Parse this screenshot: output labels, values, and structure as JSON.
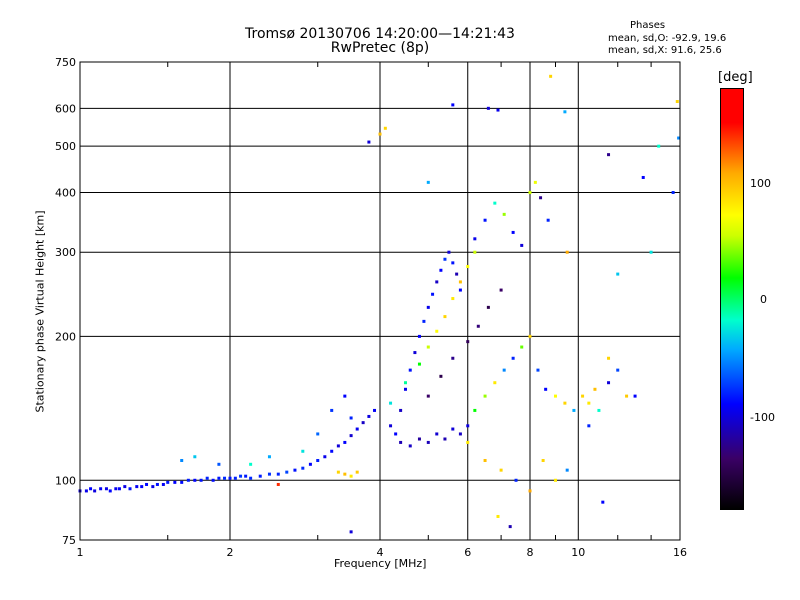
{
  "header": {
    "title_line1": "Tromsø 20130706 14:20:00—14:21:43",
    "title_line2": "RwPretec (8p)",
    "phases_title": "Phases",
    "phases_o": "mean, sd,O:  -92.9, 19.6",
    "phases_x": "mean, sd,X:   91.6, 25.6"
  },
  "colorbar": {
    "unit_label": "[deg]",
    "ticks": [
      "100",
      "0",
      "-100"
    ],
    "colors": [
      "#000000",
      "#3a0066",
      "#0000ff",
      "#00aaff",
      "#00ff00",
      "#ffff00",
      "#ff0000"
    ]
  },
  "chart_data": {
    "type": "scatter",
    "xlabel": "Frequency [MHz]",
    "ylabel": "Stationary phase Virtual Height [km]",
    "x_scale": "log",
    "y_scale": "log",
    "xlim": [
      1,
      16
    ],
    "ylim": [
      75,
      750
    ],
    "x_ticks": [
      1,
      2,
      4,
      6,
      8,
      10,
      16
    ],
    "x_ticklabels": [
      "1",
      "2",
      "4",
      "6",
      "8",
      "10",
      "16"
    ],
    "y_ticks": [
      75,
      100,
      200,
      300,
      400,
      500,
      600,
      750
    ],
    "y_ticklabels": [
      "75",
      "100",
      "200",
      "300",
      "400",
      "500",
      "600",
      "750"
    ],
    "grid": true,
    "color_scale": "phase [deg], -180 to 180",
    "series": [
      {
        "values": [
          [
            1.0,
            95,
            -110
          ],
          [
            1.03,
            95,
            -105
          ],
          [
            1.05,
            96,
            -100
          ],
          [
            1.07,
            95,
            -108
          ],
          [
            1.1,
            96,
            -102
          ],
          [
            1.13,
            96,
            -106
          ],
          [
            1.15,
            95,
            -99
          ],
          [
            1.18,
            96,
            -104
          ],
          [
            1.2,
            96,
            -101
          ],
          [
            1.23,
            97,
            -107
          ],
          [
            1.26,
            96,
            -95
          ],
          [
            1.3,
            97,
            -103
          ],
          [
            1.33,
            97,
            -100
          ],
          [
            1.36,
            98,
            -98
          ],
          [
            1.4,
            97,
            -105
          ],
          [
            1.43,
            98,
            -96
          ],
          [
            1.47,
            98,
            -102
          ],
          [
            1.5,
            99,
            -94
          ],
          [
            1.55,
            99,
            -100
          ],
          [
            1.6,
            99,
            -97
          ],
          [
            1.65,
            100,
            -92
          ],
          [
            1.7,
            100,
            -99
          ],
          [
            1.75,
            100,
            -95
          ],
          [
            1.8,
            101,
            -90
          ],
          [
            1.85,
            100,
            -97
          ],
          [
            1.9,
            101,
            -93
          ],
          [
            1.95,
            101,
            -88
          ],
          [
            2.0,
            101,
            -95
          ],
          [
            2.05,
            101,
            -90
          ],
          [
            2.1,
            102,
            -85
          ],
          [
            2.15,
            102,
            -93
          ],
          [
            2.2,
            101,
            -88
          ],
          [
            2.3,
            102,
            -92
          ],
          [
            2.4,
            103,
            -86
          ],
          [
            2.5,
            103,
            -90
          ],
          [
            2.6,
            104,
            -80
          ],
          [
            2.7,
            105,
            -95
          ],
          [
            2.8,
            106,
            -88
          ],
          [
            2.9,
            108,
            -100
          ],
          [
            3.0,
            110,
            -92
          ],
          [
            3.1,
            112,
            -105
          ],
          [
            3.2,
            115,
            -98
          ],
          [
            3.3,
            118,
            -110
          ],
          [
            3.4,
            120,
            -100
          ],
          [
            3.5,
            124,
            -112
          ],
          [
            3.6,
            128,
            -104
          ],
          [
            3.7,
            132,
            -115
          ],
          [
            3.8,
            136,
            -108
          ],
          [
            3.9,
            140,
            -102
          ],
          [
            1.6,
            110,
            -60
          ],
          [
            1.7,
            112,
            -40
          ],
          [
            1.9,
            108,
            -75
          ],
          [
            2.2,
            108,
            -20
          ],
          [
            2.4,
            112,
            -50
          ],
          [
            2.8,
            115,
            -30
          ],
          [
            3.0,
            125,
            -70
          ],
          [
            3.2,
            140,
            -85
          ],
          [
            3.4,
            150,
            -100
          ],
          [
            3.5,
            135,
            -90
          ],
          [
            3.3,
            104,
            110
          ],
          [
            3.4,
            103,
            120
          ],
          [
            3.5,
            102,
            100
          ],
          [
            3.6,
            104,
            115
          ],
          [
            2.5,
            98,
            160
          ],
          [
            3.5,
            78,
            -110
          ],
          [
            4.2,
            130,
            -110
          ],
          [
            4.3,
            125,
            -100
          ],
          [
            4.4,
            140,
            -115
          ],
          [
            4.5,
            155,
            -105
          ],
          [
            4.6,
            170,
            -95
          ],
          [
            4.7,
            185,
            -110
          ],
          [
            4.8,
            200,
            -100
          ],
          [
            4.9,
            215,
            -90
          ],
          [
            5.0,
            230,
            -105
          ],
          [
            5.1,
            245,
            -95
          ],
          [
            5.2,
            260,
            -115
          ],
          [
            5.3,
            275,
            -100
          ],
          [
            5.4,
            290,
            -85
          ],
          [
            5.5,
            300,
            -110
          ],
          [
            5.6,
            285,
            -95
          ],
          [
            5.7,
            270,
            -120
          ],
          [
            5.8,
            250,
            -100
          ],
          [
            4.4,
            120,
            -120
          ],
          [
            4.6,
            118,
            -115
          ],
          [
            4.8,
            122,
            -125
          ],
          [
            5.0,
            120,
            -118
          ],
          [
            5.2,
            125,
            -112
          ],
          [
            5.4,
            122,
            -120
          ],
          [
            5.6,
            128,
            -110
          ],
          [
            5.8,
            125,
            -115
          ],
          [
            6.0,
            130,
            -108
          ],
          [
            4.2,
            145,
            -30
          ],
          [
            4.5,
            160,
            -10
          ],
          [
            4.8,
            175,
            20
          ],
          [
            5.0,
            190,
            60
          ],
          [
            5.2,
            205,
            90
          ],
          [
            5.4,
            220,
            110
          ],
          [
            5.6,
            240,
            100
          ],
          [
            5.8,
            260,
            120
          ],
          [
            6.0,
            280,
            90
          ],
          [
            6.2,
            300,
            60
          ],
          [
            5.0,
            150,
            -140
          ],
          [
            5.3,
            165,
            -150
          ],
          [
            5.6,
            180,
            -130
          ],
          [
            6.0,
            195,
            -145
          ],
          [
            6.3,
            210,
            -135
          ],
          [
            6.6,
            230,
            -150
          ],
          [
            7.0,
            250,
            -140
          ],
          [
            6.2,
            140,
            20
          ],
          [
            6.5,
            150,
            50
          ],
          [
            6.8,
            160,
            100
          ],
          [
            7.1,
            170,
            -60
          ],
          [
            7.4,
            180,
            -90
          ],
          [
            7.7,
            190,
            40
          ],
          [
            8.0,
            200,
            110
          ],
          [
            8.3,
            170,
            -80
          ],
          [
            8.6,
            155,
            -100
          ],
          [
            9.0,
            150,
            90
          ],
          [
            9.4,
            145,
            110
          ],
          [
            9.8,
            140,
            -50
          ],
          [
            6.2,
            320,
            -105
          ],
          [
            6.5,
            350,
            -95
          ],
          [
            6.8,
            380,
            -20
          ],
          [
            7.1,
            360,
            50
          ],
          [
            7.4,
            330,
            -100
          ],
          [
            7.7,
            310,
            -110
          ],
          [
            8.0,
            400,
            60
          ],
          [
            8.2,
            420,
            80
          ],
          [
            8.4,
            390,
            -130
          ],
          [
            8.7,
            350,
            -90
          ],
          [
            6.0,
            120,
            100
          ],
          [
            6.5,
            110,
            120
          ],
          [
            7.0,
            105,
            110
          ],
          [
            7.5,
            100,
            -90
          ],
          [
            8.0,
            95,
            130
          ],
          [
            8.5,
            110,
            110
          ],
          [
            9.0,
            100,
            100
          ],
          [
            9.5,
            105,
            -60
          ],
          [
            10.2,
            150,
            110
          ],
          [
            10.5,
            145,
            100
          ],
          [
            10.8,
            155,
            120
          ],
          [
            11.0,
            140,
            -20
          ],
          [
            11.5,
            180,
            110
          ],
          [
            12.0,
            170,
            -80
          ],
          [
            12.5,
            150,
            115
          ],
          [
            3.8,
            510,
            -110
          ],
          [
            4.0,
            530,
            120
          ],
          [
            4.1,
            545,
            110
          ],
          [
            5.6,
            610,
            -100
          ],
          [
            6.6,
            600,
            -110
          ],
          [
            6.9,
            595,
            -105
          ],
          [
            8.8,
            700,
            110
          ],
          [
            9.4,
            590,
            -50
          ],
          [
            11.5,
            480,
            -130
          ],
          [
            13.5,
            430,
            -100
          ],
          [
            14.5,
            500,
            -20
          ],
          [
            15.5,
            400,
            -90
          ],
          [
            15.8,
            620,
            110
          ],
          [
            15.9,
            520,
            -60
          ],
          [
            14.0,
            300,
            -30
          ],
          [
            12.0,
            270,
            -40
          ],
          [
            13.0,
            150,
            -100
          ],
          [
            11.5,
            160,
            -110
          ],
          [
            11.2,
            90,
            -100
          ],
          [
            10.5,
            130,
            -90
          ],
          [
            9.5,
            300,
            130
          ],
          [
            7.3,
            80,
            -120
          ],
          [
            6.9,
            84,
            100
          ],
          [
            5.0,
            420,
            -50
          ]
        ]
      }
    ]
  }
}
